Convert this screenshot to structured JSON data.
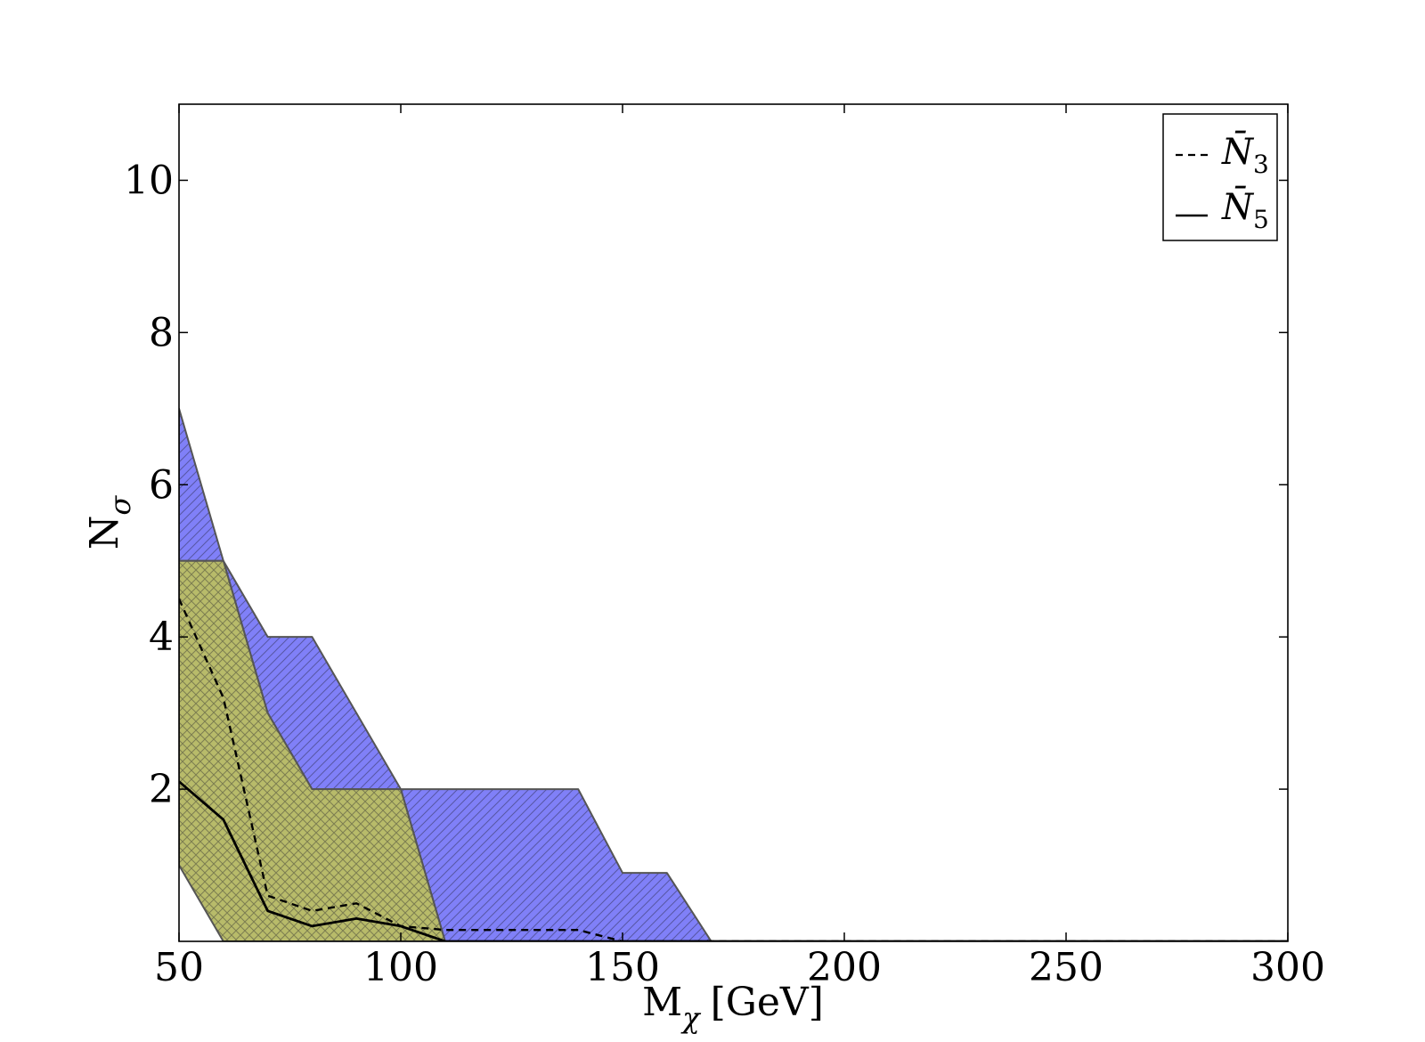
{
  "chart_data": {
    "type": "area",
    "xlabel": "M",
    "xlabel_sub": "χ",
    "xlabel_unit": "[GeV]",
    "ylabel": "N",
    "ylabel_sub": "σ",
    "xlim": [
      50,
      300
    ],
    "ylim": [
      0,
      11
    ],
    "xticks": [
      50,
      100,
      150,
      200,
      250,
      300
    ],
    "yticks": [
      2,
      4,
      6,
      8,
      10
    ],
    "grid": false,
    "legend_position": "top-right",
    "bands": [
      {
        "fill": "#8080f8",
        "hatch": "diagonal",
        "upper": [
          [
            50,
            7
          ],
          [
            60,
            5
          ],
          [
            70,
            4
          ],
          [
            80,
            4
          ],
          [
            100,
            2
          ],
          [
            140,
            2
          ],
          [
            150,
            0.9
          ],
          [
            160,
            0.9
          ],
          [
            170,
            0
          ]
        ],
        "lower": [
          [
            50,
            5
          ],
          [
            60,
            5
          ],
          [
            70,
            3
          ],
          [
            80,
            2
          ],
          [
            100,
            2
          ],
          [
            110,
            0
          ]
        ]
      },
      {
        "fill": "#b8bb6a",
        "hatch": "cross",
        "upper": [
          [
            50,
            5
          ],
          [
            60,
            5
          ],
          [
            70,
            3
          ],
          [
            80,
            2
          ],
          [
            100,
            2
          ],
          [
            110,
            0
          ]
        ],
        "lower": [
          [
            50,
            1
          ],
          [
            60,
            0
          ]
        ]
      }
    ],
    "series": [
      {
        "name": "N̄3",
        "name_base": "N̄",
        "name_sub": "3",
        "style": "dashed",
        "color": "#000000",
        "x": [
          50,
          60,
          70,
          80,
          90,
          100,
          110,
          120,
          130,
          140,
          150,
          160,
          170,
          300
        ],
        "y": [
          4.5,
          3.2,
          0.6,
          0.4,
          0.5,
          0.2,
          0.15,
          0.15,
          0.15,
          0.15,
          0.0,
          0.0,
          0.0,
          0.0
        ]
      },
      {
        "name": "N̄5",
        "name_base": "N̄",
        "name_sub": "5",
        "style": "solid",
        "color": "#000000",
        "x": [
          50,
          60,
          70,
          80,
          90,
          100,
          110,
          300
        ],
        "y": [
          2.1,
          1.6,
          0.4,
          0.2,
          0.3,
          0.2,
          0.0,
          0.0
        ]
      }
    ]
  }
}
